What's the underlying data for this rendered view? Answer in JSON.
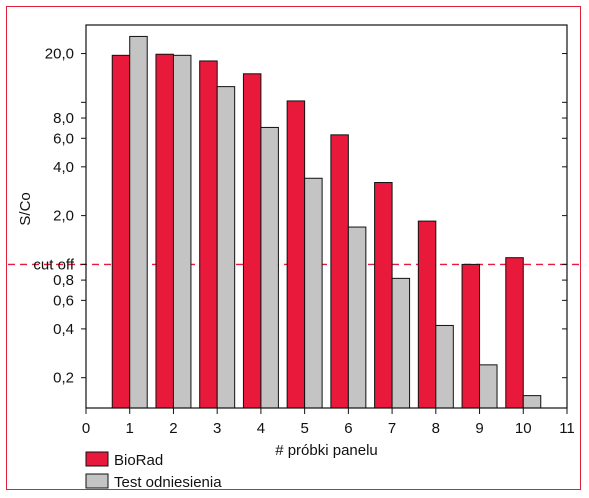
{
  "chart_data": {
    "type": "bar",
    "xlabel": "# próbki panelu",
    "ylabel": "S/Co",
    "yscale": "log",
    "ylim": [
      0.13,
      30
    ],
    "xlim": [
      0,
      11
    ],
    "x_ticks": [
      "0",
      "1",
      "2",
      "3",
      "4",
      "5",
      "6",
      "7",
      "8",
      "9",
      "10",
      "11"
    ],
    "y_tick_labels": [
      {
        "value": 20,
        "label": "20,0"
      },
      {
        "value": 8,
        "label": "8,0"
      },
      {
        "value": 6,
        "label": "6,0"
      },
      {
        "value": 4,
        "label": "4,0"
      },
      {
        "value": 2,
        "label": "2,0"
      },
      {
        "value": 1,
        "label": "cut off"
      },
      {
        "value": 0.8,
        "label": "0,8"
      },
      {
        "value": 0.6,
        "label": "0,6"
      },
      {
        "value": 0.4,
        "label": "0,4"
      },
      {
        "value": 0.2,
        "label": "0,2"
      }
    ],
    "y_minor_ticks": [
      20,
      10,
      8,
      6,
      4,
      2,
      1,
      0.8,
      0.6,
      0.4,
      0.2
    ],
    "categories": [
      1,
      2,
      3,
      4,
      5,
      6,
      7,
      8,
      9,
      10
    ],
    "series": [
      {
        "name": "BioRad",
        "color": "#e8193a",
        "values": [
          19.5,
          19.8,
          18.0,
          15.0,
          10.2,
          6.3,
          3.2,
          1.85,
          1.0,
          1.1
        ]
      },
      {
        "name": "Test odniesienia",
        "color": "#c4c4c4",
        "values": [
          25.5,
          19.5,
          12.5,
          7.0,
          3.4,
          1.7,
          0.82,
          0.42,
          0.24,
          0.155
        ]
      }
    ],
    "cutoff": {
      "value": 1,
      "color": "#e8193a",
      "style": "dashed"
    },
    "legend_position": "bottom-left"
  }
}
